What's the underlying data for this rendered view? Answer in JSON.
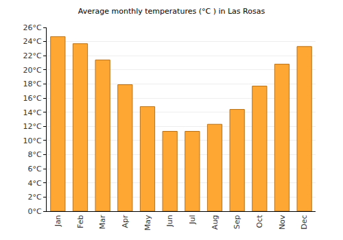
{
  "chart_data": {
    "type": "bar",
    "title": "Average monthly temperatures (°C ) in Las Rosas",
    "categories": [
      "Jan",
      "Feb",
      "Mar",
      "Apr",
      "May",
      "Jun",
      "Jul",
      "Aug",
      "Sep",
      "Oct",
      "Nov",
      "Dec"
    ],
    "values": [
      24.7,
      23.7,
      21.4,
      17.9,
      14.8,
      11.3,
      11.3,
      12.3,
      14.4,
      17.7,
      20.8,
      23.3
    ],
    "color": "#ffa733",
    "ylim": [
      0,
      26
    ],
    "yticks": [
      {
        "value": 0,
        "label": "0°C"
      },
      {
        "value": 2,
        "label": "2°C"
      },
      {
        "value": 4,
        "label": "4°C"
      },
      {
        "value": 6,
        "label": "6°C"
      },
      {
        "value": 8,
        "label": "8°C"
      },
      {
        "value": 10,
        "label": "10°C"
      },
      {
        "value": 12,
        "label": "12°C"
      },
      {
        "value": 14,
        "label": "14°C"
      },
      {
        "value": 16,
        "label": "16°C"
      },
      {
        "value": 18,
        "label": "18°C"
      },
      {
        "value": 20,
        "label": "20°C"
      },
      {
        "value": 22,
        "label": "22°C"
      },
      {
        "value": 24,
        "label": "24°C"
      },
      {
        "value": 26,
        "label": "26°C"
      }
    ],
    "grid": true
  }
}
